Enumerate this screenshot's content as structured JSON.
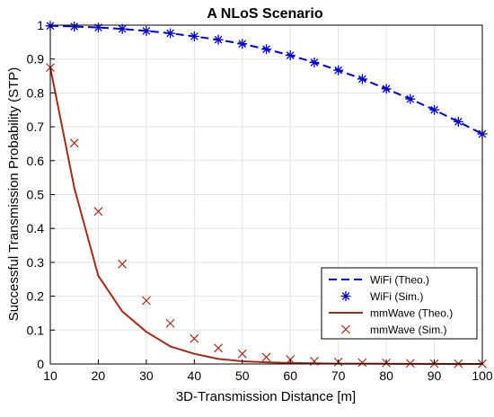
{
  "chart_data": {
    "type": "line",
    "title": "A NLoS Scenario",
    "xlabel": "3D-Transmission Distance [m]",
    "ylabel": "Successful Transmission Probability (STP)",
    "xlim": [
      10,
      100
    ],
    "ylim": [
      0,
      1
    ],
    "xticks": [
      10,
      20,
      30,
      40,
      50,
      60,
      70,
      80,
      90,
      100
    ],
    "yticks": [
      0,
      0.1,
      0.2,
      0.3,
      0.4,
      0.5,
      0.6,
      0.7,
      0.8,
      0.9,
      1
    ],
    "grid": true,
    "legend_position": "bottom-right",
    "series": [
      {
        "name": "WiFi (Theo.)",
        "color": "#0000cc",
        "style": "dashed",
        "marker": "none",
        "x": [
          10,
          15,
          20,
          25,
          30,
          35,
          40,
          45,
          50,
          55,
          60,
          65,
          70,
          75,
          80,
          85,
          90,
          95,
          100
        ],
        "y": [
          0.998,
          0.996,
          0.993,
          0.989,
          0.983,
          0.976,
          0.967,
          0.957,
          0.945,
          0.929,
          0.911,
          0.89,
          0.867,
          0.841,
          0.812,
          0.782,
          0.75,
          0.715,
          0.679
        ]
      },
      {
        "name": "WiFi (Sim.)",
        "color": "#0000cc",
        "style": "none",
        "marker": "asterisk",
        "x": [
          10,
          15,
          20,
          25,
          30,
          35,
          40,
          45,
          50,
          55,
          60,
          65,
          70,
          75,
          80,
          85,
          90,
          95,
          100
        ],
        "y": [
          0.998,
          0.996,
          0.993,
          0.989,
          0.983,
          0.976,
          0.967,
          0.957,
          0.945,
          0.929,
          0.911,
          0.89,
          0.867,
          0.841,
          0.812,
          0.782,
          0.75,
          0.715,
          0.679
        ]
      },
      {
        "name": "mmWave (Theo.)",
        "color": "#a52a1a",
        "style": "solid",
        "marker": "none",
        "x": [
          10,
          15,
          20,
          25,
          30,
          35,
          40,
          45,
          50,
          55,
          60,
          65,
          70,
          75,
          80,
          85,
          90,
          95,
          100
        ],
        "y": [
          0.875,
          0.52,
          0.26,
          0.155,
          0.095,
          0.052,
          0.03,
          0.015,
          0.008,
          0.005,
          0.003,
          0.002,
          0.001,
          0.001,
          0.0005,
          0.0003,
          0.0002,
          0.0001,
          0.0001
        ]
      },
      {
        "name": "mmWave (Sim.)",
        "color": "#a52a1a",
        "style": "none",
        "marker": "x",
        "x": [
          10,
          15,
          20,
          25,
          30,
          35,
          40,
          45,
          50,
          55,
          60,
          65,
          70,
          75,
          80,
          85,
          90,
          95,
          100
        ],
        "y": [
          0.875,
          0.652,
          0.45,
          0.295,
          0.187,
          0.12,
          0.075,
          0.047,
          0.03,
          0.02,
          0.013,
          0.008,
          0.006,
          0.004,
          0.003,
          0.002,
          0.001,
          0.001,
          0.0005
        ]
      }
    ]
  }
}
